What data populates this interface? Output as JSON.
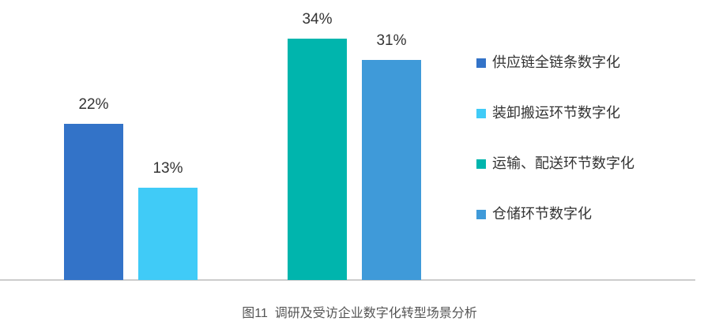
{
  "chart_data": {
    "type": "bar",
    "title": "图11  调研及受访企业数字化转型场景分析",
    "series": [
      {
        "name": "供应链全链条数字化",
        "color": "#3373c8",
        "values": [
          22
        ],
        "value_labels": [
          "22%"
        ]
      },
      {
        "name": "装卸搬运环节数字化",
        "color": "#40cbf7",
        "values": [
          13
        ],
        "value_labels": [
          "13%"
        ]
      },
      {
        "name": "运输、配送环节数字化",
        "color": "#00b5ad",
        "values": [
          34
        ],
        "value_labels": [
          "34%"
        ]
      },
      {
        "name": "仓储环节数字化",
        "color": "#3f9ad9",
        "values": [
          31
        ],
        "value_labels": [
          "31%"
        ]
      }
    ],
    "legend": "right"
  }
}
